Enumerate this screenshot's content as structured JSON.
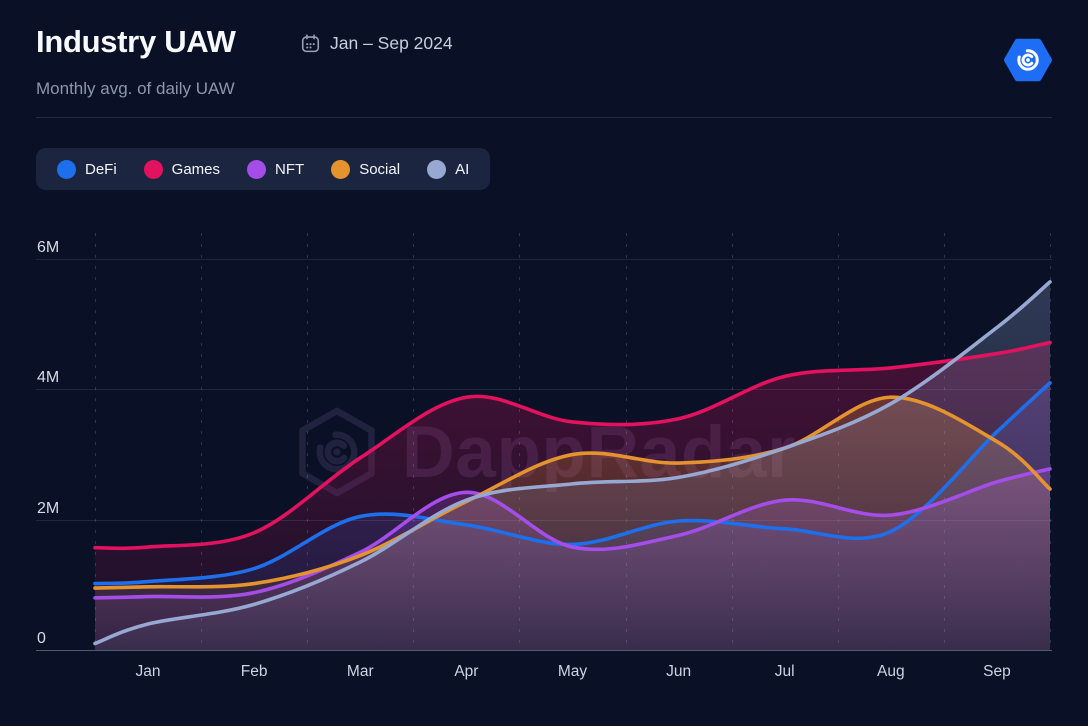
{
  "header": {
    "title": "Industry UAW",
    "date_range": "Jan – Sep 2024",
    "subtitle": "Monthly avg. of daily UAW"
  },
  "legend": {
    "items": [
      {
        "label": "DeFi",
        "color": "#1d6feb"
      },
      {
        "label": "Games",
        "color": "#e3125e"
      },
      {
        "label": "NFT",
        "color": "#a44de8"
      },
      {
        "label": "Social",
        "color": "#e5932f"
      },
      {
        "label": "AI",
        "color": "#97a8d2"
      }
    ]
  },
  "watermark": {
    "text": "DappRadar"
  },
  "chart_data": {
    "type": "line",
    "title": "Industry UAW",
    "subtitle": "Monthly avg. of daily UAW",
    "period": "Jan – Sep 2024",
    "unit": "UAW (millions)",
    "categories": [
      "Jan",
      "Feb",
      "Mar",
      "Apr",
      "May",
      "Jun",
      "Jul",
      "Aug",
      "Sep"
    ],
    "y_tick_labels": [
      "0",
      "2M",
      "4M",
      "6M"
    ],
    "y_tick_values_m": [
      0,
      2,
      4,
      6
    ],
    "ylim_m": [
      0,
      6.4
    ],
    "x_positions_band_units": [
      0,
      0.5,
      1.5,
      2.5,
      3.5,
      4.5,
      5.5,
      6.5,
      7.5,
      8.5,
      9
    ],
    "x_positions_note": "0 = chart left edge, k+0.5 = center of month k, 9 = chart right edge",
    "grid": {
      "vertical_dashed": true,
      "horizontal_solid": true
    },
    "legend_position": "top-left",
    "area_fill": true,
    "series": [
      {
        "name": "DeFi",
        "color": "#1d6feb",
        "values_m": [
          1.02,
          1.05,
          1.25,
          2.05,
          1.92,
          1.62,
          1.98,
          1.86,
          1.82,
          3.35,
          4.1
        ]
      },
      {
        "name": "Games",
        "color": "#e3125e",
        "values_m": [
          1.57,
          1.58,
          1.8,
          2.95,
          3.88,
          3.5,
          3.55,
          4.2,
          4.33,
          4.55,
          4.72
        ]
      },
      {
        "name": "NFT",
        "color": "#a44de8",
        "values_m": [
          0.8,
          0.82,
          0.88,
          1.5,
          2.42,
          1.58,
          1.76,
          2.3,
          2.07,
          2.58,
          2.78
        ]
      },
      {
        "name": "Social",
        "color": "#e5932f",
        "values_m": [
          0.95,
          0.97,
          1.02,
          1.45,
          2.28,
          3.0,
          2.87,
          3.1,
          3.88,
          3.2,
          2.47
        ]
      },
      {
        "name": "AI",
        "color": "#97a8d2",
        "values_m": [
          0.1,
          0.4,
          0.7,
          1.35,
          2.3,
          2.55,
          2.65,
          3.1,
          3.78,
          4.95,
          5.65
        ]
      }
    ]
  }
}
